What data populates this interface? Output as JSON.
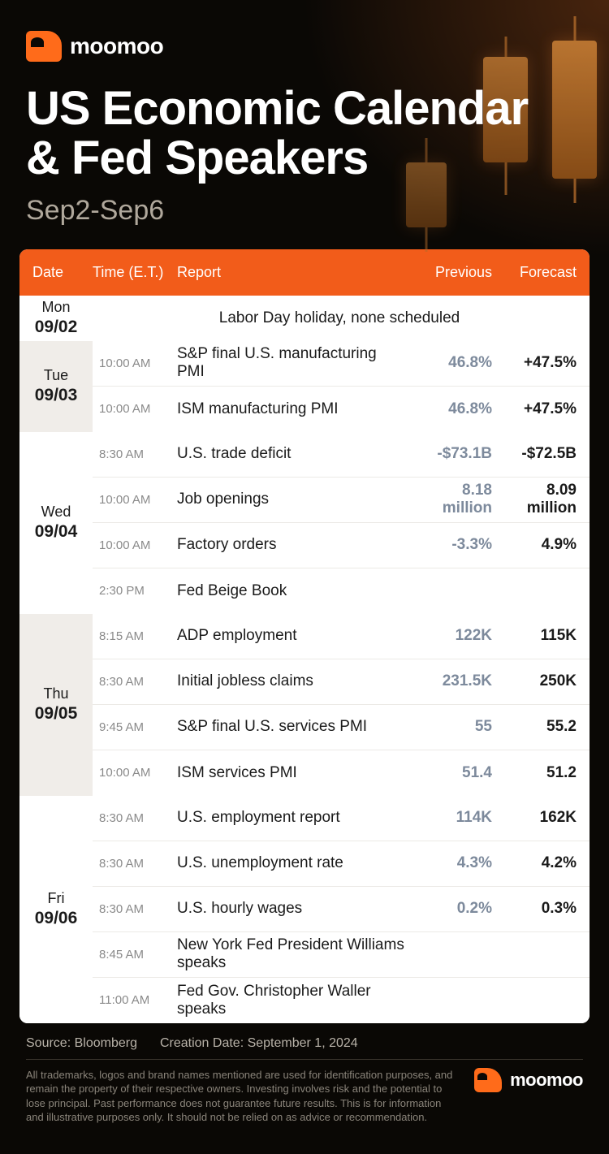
{
  "brand": {
    "name": "moomoo"
  },
  "header": {
    "title_line1": "US Economic Calendar",
    "title_line2": "& Fed Speakers",
    "date_range": "Sep2-Sep6"
  },
  "colors": {
    "header_bg": "#f25c1a",
    "page_bg": "#0a0805",
    "previous_text": "#7d8a9c",
    "forecast_text": "#1a1a1a",
    "muted_text": "#8a8a8a",
    "alt_row_bg": "#f0ede9",
    "divider": "#eceae6"
  },
  "table": {
    "columns": {
      "date": "Date",
      "time": "Time (E.T.)",
      "report": "Report",
      "previous": "Previous",
      "forecast": "Forecast"
    },
    "days": [
      {
        "dow": "Mon",
        "md": "09/02",
        "alt": false,
        "events": [
          {
            "note": true,
            "report": "Labor Day holiday, none scheduled"
          }
        ]
      },
      {
        "dow": "Tue",
        "md": "09/03",
        "alt": true,
        "events": [
          {
            "time": "10:00 AM",
            "report": "S&P final U.S. manufacturing PMI",
            "previous": "46.8%",
            "forecast": "+47.5%"
          },
          {
            "time": "10:00 AM",
            "report": "ISM manufacturing PMI",
            "previous": "46.8%",
            "forecast": "+47.5%"
          }
        ]
      },
      {
        "dow": "Wed",
        "md": "09/04",
        "alt": false,
        "events": [
          {
            "time": "8:30 AM",
            "report": "U.S. trade deficit",
            "previous": "-$73.1B",
            "forecast": "-$72.5B"
          },
          {
            "time": "10:00 AM",
            "report": "Job openings",
            "previous": "8.18 million",
            "forecast": "8.09 million"
          },
          {
            "time": "10:00 AM",
            "report": "Factory orders",
            "previous": "-3.3%",
            "forecast": "4.9%"
          },
          {
            "time": "2:30 PM",
            "report": "Fed Beige Book",
            "previous": "",
            "forecast": ""
          }
        ]
      },
      {
        "dow": "Thu",
        "md": "09/05",
        "alt": true,
        "events": [
          {
            "time": "8:15 AM",
            "report": "ADP employment",
            "previous": "122K",
            "forecast": "115K"
          },
          {
            "time": "8:30 AM",
            "report": "Initial jobless claims",
            "previous": "231.5K",
            "forecast": "250K"
          },
          {
            "time": "9:45 AM",
            "report": "S&P final U.S. services PMI",
            "previous": "55",
            "forecast": "55.2"
          },
          {
            "time": "10:00 AM",
            "report": "ISM services PMI",
            "previous": "51.4",
            "forecast": "51.2"
          }
        ]
      },
      {
        "dow": "Fri",
        "md": "09/06",
        "alt": false,
        "events": [
          {
            "time": "8:30 AM",
            "report": "U.S. employment report",
            "previous": "114K",
            "forecast": "162K"
          },
          {
            "time": "8:30 AM",
            "report": "U.S. unemployment rate",
            "previous": "4.3%",
            "forecast": "4.2%"
          },
          {
            "time": "8:30 AM",
            "report": "U.S. hourly wages",
            "previous": "0.2%",
            "forecast": "0.3%"
          },
          {
            "time": "8:45 AM",
            "report": "New York Fed President Williams speaks",
            "previous": "",
            "forecast": ""
          },
          {
            "time": "11:00 AM",
            "report": "Fed Gov. Christopher Waller speaks",
            "previous": "",
            "forecast": ""
          }
        ]
      }
    ]
  },
  "footer": {
    "source": "Source: Bloomberg",
    "creation": "Creation Date: September 1, 2024",
    "disclaimer": "All trademarks, logos and brand names mentioned are used for identification purposes, and remain the property of their respective owners. Investing involves risk and the potential to lose principal. Past performance does not guarantee future results. This is for information and illustrative purposes only. It should not be relied on as advice or recommendation."
  }
}
